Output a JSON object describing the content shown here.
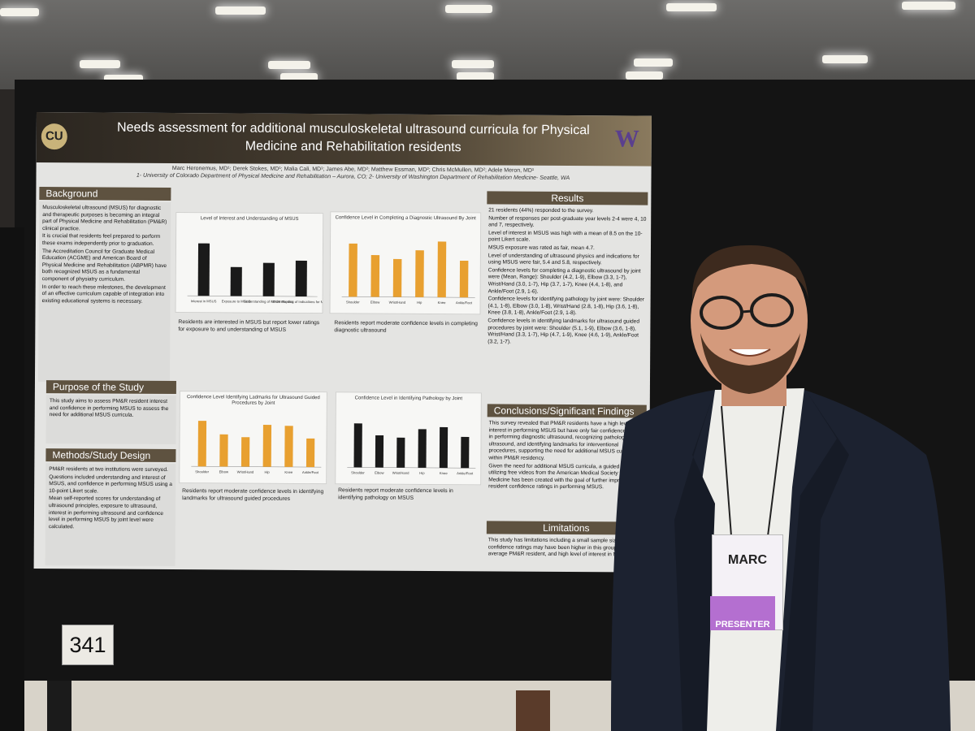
{
  "poster": {
    "title_line1": "Needs assessment for additional musculoskeletal ultrasound curricula for Physical",
    "title_line2": "Medicine and Rehabilitation residents",
    "logo_left": "CU",
    "logo_right": "W",
    "authors": "Marc Heronemus, MD¹; Derek Stokes, MD¹; Malia Cali, MD¹; James Abe, MD²; Matthew Essman, MD²; Chris McMullen, MD²; Adele Meron, MD¹",
    "affiliations": "1- University of Colorado Department of Physical Medicine and Rehabilitation – Aurora, CO; 2- University of Washington Department of Rehabilitation Medicine- Seattle, WA",
    "background": {
      "heading": "Background",
      "bullets": [
        "Musculoskeletal ultrasound (MSUS) for diagnostic and therapeutic purposes is becoming an integral part of Physical Medicine and Rehabilitation (PM&R) clinical practice.",
        "It is crucial that residents feel prepared to perform these exams independently prior to graduation.",
        "The Accreditation Council for Graduate Medical Education (ACGME) and American Board of Physical Medicine and Rehabilitation (ABPMR) have both recognized MSUS as a fundamental component of physiatry curriculum.",
        "In order to reach these milestones, the development of an effective curriculum capable of integration into existing educational systems is necessary."
      ]
    },
    "purpose": {
      "heading": "Purpose of the Study",
      "bullets": [
        "This study aims to assess PM&R resident interest and confidence in performing MSUS to assess the need for additional MSUS curricula."
      ]
    },
    "methods": {
      "heading": "Methods/Study Design",
      "bullets": [
        "PM&R residents at two institutions were surveyed.",
        "Questions included understanding and interest of MSUS, and confidence in performing MSUS using a 10-point Likert scale.",
        "Mean self-reported scores for understanding of ultrasound principles, exposure to ultrasound, interest in performing ultrasound and confidence level in performing MSUS by joint level were calculated."
      ]
    },
    "results": {
      "heading": "Results",
      "bullets": [
        "21 residents (44%) responded to the survey.",
        "Number of responses per post-graduate year levels 2-4 were 4, 10 and 7, respectively.",
        "Level of interest in MSUS was high with a mean of 8.5 on the 10-point Likert scale.",
        "MSUS exposure was rated as fair, mean 4.7.",
        "Level of understanding of ultrasound physics and indications for using MSUS were fair, 5.4 and 5.8, respectively.",
        "Confidence levels for completing a diagnostic ultrasound by joint were (Mean, Range): Shoulder (4.2, 1-9), Elbow (3.3, 1-7), Wrist/Hand (3.0, 1-7), Hip (3.7, 1-7), Knee (4.4, 1-8), and Ankle/Foot (2.9, 1-6).",
        "Confidence levels for identifying pathology by joint were: Shoulder (4.1, 1-8), Elbow (3.0, 1-8), Wrist/Hand (2.8, 1-8), Hip (3.6, 1-8), Knee (3.8, 1-8), Ankle/Foot (2.9, 1-8).",
        "Confidence levels in identifying landmarks for ultrasound guided procedures by joint were: Shoulder (5.1, 1-9), Elbow (3.6, 1-8), Wrist/Hand (3.3, 1-7), Hip (4.7, 1-9), Knee (4.6, 1-9), Ankle/Foot (3.2, 1-7)."
      ]
    },
    "conclusions": {
      "heading": "Conclusions/Significant Findings",
      "bullets": [
        "This survey revealed that PM&R residents have a high level of interest in performing MSUS but have only fair confidence levels in performing diagnostic ultrasound, recognizing pathology on ultrasound, and identifying landmarks for interventional procedures, supporting the need for additional MSUS curricula within PM&R residency.",
        "Given the need for additional MSUS curricula, a guided curriculum utilizing free videos from the American Medical Society for Sports Medicine has been created with the goal of further improving resident confidence ratings in performing MSUS."
      ]
    },
    "limitations": {
      "heading": "Limitations",
      "bullets": [
        "This study has limitations including a small sample size (n=21), confidence ratings may have been higher in this group than the average PM&R resident, and high level of interest in MSUS."
      ]
    },
    "captions": {
      "interest": "Residents are interested in MSUS but report lower ratings for exposure to and understanding of MSUS",
      "diagnostic": "Residents report moderate confidence levels in completing diagnostic ultrasound",
      "landmarks": "Residents report moderate confidence levels in identifying landmarks for ultrasound guided procedures",
      "pathology": "Residents report moderate confidence levels in identifying pathology on MSUS"
    }
  },
  "chart_data": [
    {
      "type": "bar",
      "title": "Level of Interest and Understanding of MSUS",
      "categories": [
        "Interest in MSUS",
        "Exposure to MSUS",
        "Understanding of MSUS Physics",
        "Understanding of Indications for MSUS"
      ],
      "values": [
        8.5,
        4.7,
        5.4,
        5.8
      ],
      "ylim": [
        0,
        10
      ],
      "color": "#1a1a1a"
    },
    {
      "type": "bar",
      "title": "Confidence Level in Completing a Diagnostic Ultrasound By Joint",
      "categories": [
        "Shoulder",
        "Elbow",
        "Wrist/Hand",
        "Hip",
        "Knee",
        "Ankle/Foot"
      ],
      "values": [
        4.2,
        3.3,
        3.0,
        3.7,
        4.4,
        2.9
      ],
      "ylim": [
        0,
        5
      ],
      "color": "#e8a030"
    },
    {
      "type": "bar",
      "title": "Confidence Level Identifying Ladmarks for Ultrasound Guided Procedures by Joint",
      "categories": [
        "Shoulder",
        "Elbow",
        "Wrist/Hand",
        "Hip",
        "Knee",
        "Ankle/Foot"
      ],
      "values": [
        5.1,
        3.6,
        3.3,
        4.7,
        4.6,
        3.2
      ],
      "ylim": [
        0,
        6
      ],
      "color": "#e8a030"
    },
    {
      "type": "bar",
      "title": "Confidence Level in Identifying Pathology by Joint",
      "categories": [
        "Shoulder",
        "Elbow",
        "Wrist/Hand",
        "Hip",
        "Knee",
        "Ankle/Foot"
      ],
      "values": [
        4.1,
        3.0,
        2.8,
        3.6,
        3.8,
        2.9
      ],
      "ylim": [
        0,
        5
      ],
      "color": "#1a1a1a"
    }
  ],
  "board_number": "341",
  "badge": {
    "name": "MARC",
    "ribbon": "PRESENTER"
  }
}
